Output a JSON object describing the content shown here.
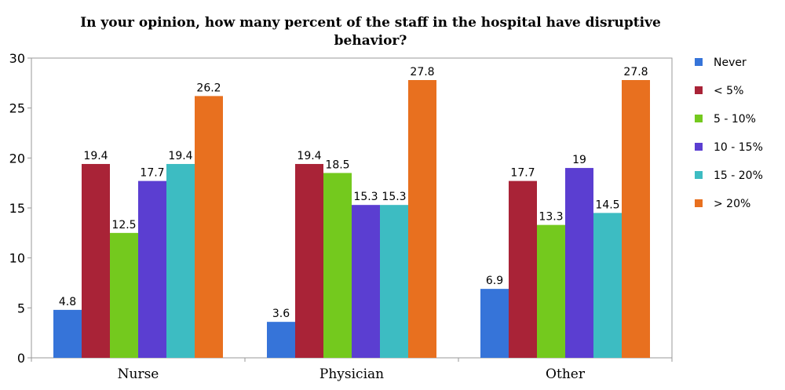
{
  "chart_data": {
    "type": "bar",
    "title_line1": "In your opinion, how many percent of the staff in the hospital have disruptive",
    "title_line2": "behavior?",
    "categories": [
      "Nurse",
      "Physician",
      "Other"
    ],
    "ylim": [
      0,
      30
    ],
    "yticks": [
      "0",
      "5",
      "10",
      "15",
      "20",
      "25",
      "30"
    ],
    "grid": false,
    "legend_position": "right",
    "series": [
      {
        "name": "Never",
        "color": "#3674d9",
        "values": [
          4.8,
          3.6,
          6.9
        ],
        "labels": [
          "4.8",
          "3.6",
          "6.9"
        ]
      },
      {
        "name": "< 5%",
        "color": "#a92337",
        "values": [
          19.4,
          19.4,
          17.7
        ],
        "labels": [
          "19.4",
          "19.4",
          "17.7"
        ]
      },
      {
        "name": "5 - 10%",
        "color": "#74c91e",
        "values": [
          12.5,
          18.5,
          13.3
        ],
        "labels": [
          "12.5",
          "18.5",
          "13.3"
        ]
      },
      {
        "name": "10 - 15%",
        "color": "#5b3ed1",
        "values": [
          17.7,
          15.3,
          19
        ],
        "labels": [
          "17.7",
          "15.3",
          "19"
        ]
      },
      {
        "name": "15 - 20%",
        "color": "#3dbcc2",
        "values": [
          19.4,
          15.3,
          14.5
        ],
        "labels": [
          "19.4",
          "15.3",
          "14.5"
        ]
      },
      {
        "name": "> 20%",
        "color": "#e8701f",
        "values": [
          26.2,
          27.8,
          27.8
        ],
        "labels": [
          "26.2",
          "27.8",
          "27.8"
        ]
      }
    ]
  }
}
